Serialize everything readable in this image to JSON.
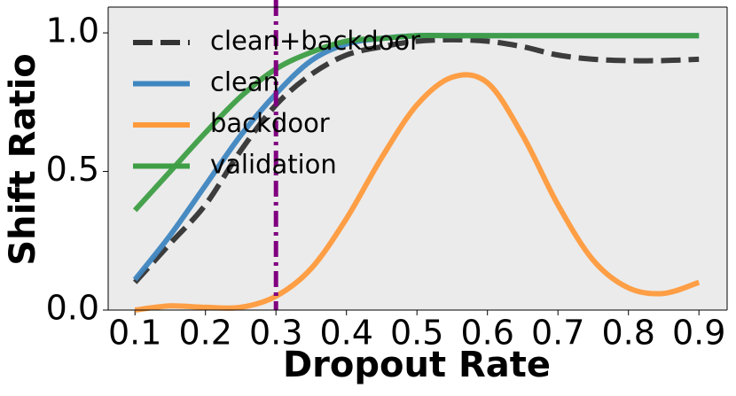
{
  "chart_data": {
    "type": "line",
    "xlabel": "Dropout Rate",
    "ylabel": "Shift Ratio",
    "x": [
      0.1,
      0.15,
      0.2,
      0.25,
      0.3,
      0.35,
      0.4,
      0.45,
      0.5,
      0.55,
      0.6,
      0.65,
      0.7,
      0.75,
      0.8,
      0.85,
      0.9
    ],
    "series": [
      {
        "name": "clean+backdoor",
        "color": "#333333",
        "dash": "dashed",
        "values": [
          0.1,
          0.24,
          0.38,
          0.575,
          0.74,
          0.85,
          0.92,
          0.95,
          0.97,
          0.975,
          0.97,
          0.95,
          0.92,
          0.905,
          0.9,
          0.9,
          0.905
        ]
      },
      {
        "name": "clean",
        "color": "#3f86c0",
        "dash": "solid",
        "values": [
          0.11,
          0.27,
          0.45,
          0.63,
          0.78,
          0.9,
          0.96,
          0.98,
          0.99,
          0.99,
          0.99,
          0.99,
          0.99,
          0.99,
          0.99,
          0.99,
          0.99
        ]
      },
      {
        "name": "backdoor",
        "color": "#ff9a3c",
        "dash": "solid",
        "values": [
          0.0,
          0.015,
          0.01,
          0.01,
          0.05,
          0.15,
          0.33,
          0.55,
          0.74,
          0.84,
          0.82,
          0.63,
          0.38,
          0.18,
          0.08,
          0.06,
          0.1
        ]
      },
      {
        "name": "validation",
        "color": "#3e9e45",
        "dash": "solid",
        "values": [
          0.36,
          0.5,
          0.64,
          0.77,
          0.87,
          0.93,
          0.97,
          0.98,
          0.99,
          0.99,
          0.99,
          0.99,
          0.99,
          0.99,
          0.99,
          0.99,
          0.99
        ]
      }
    ],
    "vline": {
      "value": 0.3,
      "color": "#800080"
    },
    "xlim": [
      0.062,
      0.94
    ],
    "ylim": [
      0,
      1.093
    ],
    "xticks": [
      0.1,
      0.2,
      0.3,
      0.4,
      0.5,
      0.6,
      0.7,
      0.8,
      0.9
    ],
    "yticks": [
      {
        "value": 0,
        "label": "0.0"
      },
      0.5,
      {
        "value": 1,
        "label": "1.0"
      }
    ],
    "legend": "upper left"
  }
}
